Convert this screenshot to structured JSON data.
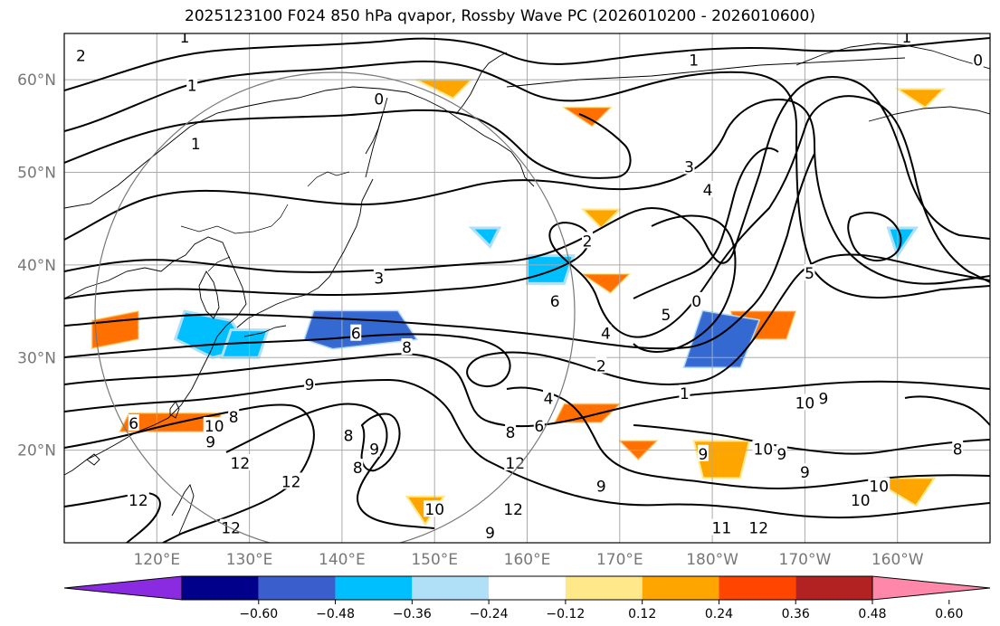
{
  "title": "2025123100 F024 850 hPa qvapor, Rossby Wave PC (2026010200 - 2026010600)",
  "map": {
    "lon_range": [
      110,
      210
    ],
    "lat_range": [
      10,
      65
    ],
    "lat_labels": [
      {
        "lat": 20,
        "text": "20°N"
      },
      {
        "lat": 30,
        "text": "30°N"
      },
      {
        "lat": 40,
        "text": "40°N"
      },
      {
        "lat": 50,
        "text": "50°N"
      },
      {
        "lat": 60,
        "text": "60°N"
      }
    ],
    "lon_labels": [
      {
        "lon": 120,
        "text": "120°E"
      },
      {
        "lon": 130,
        "text": "130°E"
      },
      {
        "lon": 140,
        "text": "140°E"
      },
      {
        "lon": 150,
        "text": "150°E"
      },
      {
        "lon": 160,
        "text": "160°E"
      },
      {
        "lon": 170,
        "text": "170°E"
      },
      {
        "lon": 180,
        "text": "180°W"
      },
      {
        "lon": 190,
        "text": "170°W"
      },
      {
        "lon": 200,
        "text": "160°W"
      }
    ],
    "grid_lats": [
      20,
      30,
      40,
      50,
      60
    ],
    "grid_lons": [
      120,
      130,
      140,
      150,
      160,
      170,
      180,
      190,
      200
    ],
    "contour_labels": [
      {
        "lon": 123.0,
        "lat": 64.5,
        "text": "1"
      },
      {
        "lon": 111.8,
        "lat": 62.5,
        "text": "2"
      },
      {
        "lon": 124.2,
        "lat": 53.0,
        "text": "1"
      },
      {
        "lon": 123.8,
        "lat": 59.3,
        "text": "1"
      },
      {
        "lon": 144.0,
        "lat": 57.8,
        "text": "0"
      },
      {
        "lon": 178.0,
        "lat": 62.0,
        "text": "1"
      },
      {
        "lon": 201.0,
        "lat": 64.5,
        "text": "1"
      },
      {
        "lon": 208.7,
        "lat": 62.0,
        "text": "0"
      },
      {
        "lon": 177.5,
        "lat": 50.5,
        "text": "3"
      },
      {
        "lon": 179.5,
        "lat": 48.0,
        "text": "4"
      },
      {
        "lon": 166.5,
        "lat": 42.5,
        "text": "2"
      },
      {
        "lon": 144.0,
        "lat": 38.5,
        "text": "3"
      },
      {
        "lon": 190.5,
        "lat": 39.0,
        "text": "5"
      },
      {
        "lon": 175.0,
        "lat": 34.5,
        "text": "5"
      },
      {
        "lon": 168.5,
        "lat": 32.5,
        "text": "4"
      },
      {
        "lon": 163.0,
        "lat": 36.0,
        "text": "6"
      },
      {
        "lon": 141.5,
        "lat": 32.5,
        "text": "6"
      },
      {
        "lon": 147.0,
        "lat": 31.0,
        "text": "8"
      },
      {
        "lon": 136.5,
        "lat": 27.0,
        "text": "9"
      },
      {
        "lon": 168.0,
        "lat": 29.0,
        "text": "2"
      },
      {
        "lon": 178.3,
        "lat": 36.0,
        "text": "0"
      },
      {
        "lon": 177.0,
        "lat": 26.0,
        "text": "1"
      },
      {
        "lon": 162.3,
        "lat": 25.5,
        "text": "4"
      },
      {
        "lon": 128.3,
        "lat": 23.5,
        "text": "8"
      },
      {
        "lon": 126.2,
        "lat": 22.5,
        "text": "10"
      },
      {
        "lon": 125.8,
        "lat": 20.8,
        "text": "9"
      },
      {
        "lon": 140.7,
        "lat": 21.5,
        "text": "8"
      },
      {
        "lon": 143.5,
        "lat": 20.0,
        "text": "9"
      },
      {
        "lon": 141.7,
        "lat": 18.0,
        "text": "8"
      },
      {
        "lon": 158.2,
        "lat": 21.8,
        "text": "8"
      },
      {
        "lon": 161.3,
        "lat": 22.5,
        "text": "6"
      },
      {
        "lon": 158.7,
        "lat": 18.5,
        "text": "12"
      },
      {
        "lon": 168.0,
        "lat": 16.0,
        "text": "9"
      },
      {
        "lon": 179.0,
        "lat": 19.5,
        "text": "9"
      },
      {
        "lon": 190.0,
        "lat": 25.0,
        "text": "10"
      },
      {
        "lon": 192.0,
        "lat": 25.5,
        "text": "9"
      },
      {
        "lon": 185.5,
        "lat": 20.0,
        "text": "10"
      },
      {
        "lon": 187.5,
        "lat": 19.5,
        "text": "9"
      },
      {
        "lon": 190.0,
        "lat": 17.5,
        "text": "9"
      },
      {
        "lon": 206.5,
        "lat": 20.0,
        "text": "8"
      },
      {
        "lon": 198.0,
        "lat": 16.0,
        "text": "10"
      },
      {
        "lon": 196.0,
        "lat": 14.5,
        "text": "10"
      },
      {
        "lon": 150.0,
        "lat": 13.5,
        "text": "10"
      },
      {
        "lon": 158.5,
        "lat": 13.5,
        "text": "12"
      },
      {
        "lon": 156.0,
        "lat": 11.0,
        "text": "9"
      },
      {
        "lon": 181.0,
        "lat": 11.5,
        "text": "11"
      },
      {
        "lon": 185.0,
        "lat": 11.5,
        "text": "12"
      },
      {
        "lon": 129.0,
        "lat": 18.5,
        "text": "12"
      },
      {
        "lon": 134.5,
        "lat": 16.5,
        "text": "12"
      },
      {
        "lon": 118.0,
        "lat": 14.5,
        "text": "12"
      },
      {
        "lon": 128.0,
        "lat": 11.5,
        "text": "12"
      },
      {
        "lon": 117.5,
        "lat": 22.8,
        "text": "6"
      }
    ]
  },
  "colorbar": {
    "ticks": [
      "−0.60",
      "−0.48",
      "−0.36",
      "−0.24",
      "−0.12",
      "0.12",
      "0.24",
      "0.36",
      "0.48",
      "0.60"
    ],
    "colors": [
      "#8a2be2",
      "#00008b",
      "#3a5fcd",
      "#00bfff",
      "#b0e0f8",
      "#ffffff",
      "#ffe88a",
      "#ffa500",
      "#ff4500",
      "#b22222",
      "#ff88aa"
    ],
    "under_color": "#8a2be2",
    "over_color": "#ff88aa"
  }
}
